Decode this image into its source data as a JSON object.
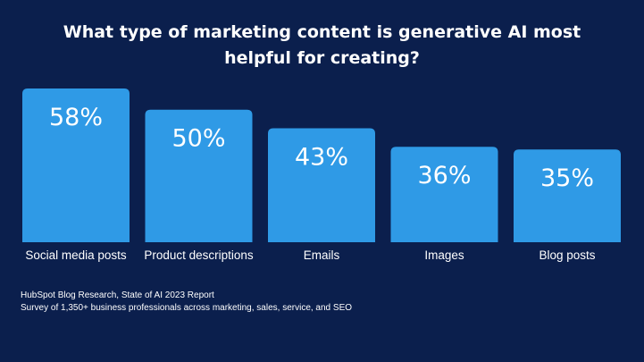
{
  "chart_data": {
    "type": "bar",
    "title_lines": [
      "What type of marketing content is generative AI most",
      "helpful for creating?"
    ],
    "categories": [
      "Social media posts",
      "Product descriptions",
      "Emails",
      "Images",
      "Blog posts"
    ],
    "values": [
      58,
      50,
      43,
      36,
      35
    ],
    "value_labels": [
      "58%",
      "50%",
      "43%",
      "36%",
      "35%"
    ],
    "ylim": [
      0,
      58
    ],
    "grid": false,
    "legend": "none"
  },
  "footer": {
    "source": "HubSpot Blog Research, State of AI 2023 Report",
    "survey": "Survey of 1,350+ business professionals across marketing, sales, service, and SEO"
  },
  "colors": {
    "background": "#0b1f4d",
    "bar": "#2f9ae6",
    "text": "#ffffff"
  }
}
